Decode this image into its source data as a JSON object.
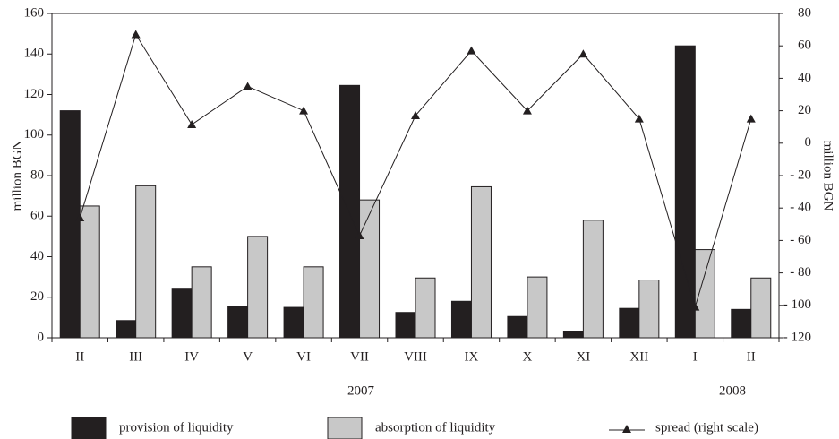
{
  "chart_data": {
    "type": "bar_line",
    "categories": [
      "II",
      "III",
      "IV",
      "V",
      "VI",
      "VII",
      "VIII",
      "IX",
      "X",
      "XI",
      "XII",
      "I",
      "II"
    ],
    "series": [
      {
        "name": "provision of liquidity",
        "color": "#231f20",
        "type": "bar",
        "values": [
          112,
          8.5,
          24,
          15.5,
          15,
          124.5,
          12.5,
          18,
          10.5,
          3,
          14.5,
          144,
          14
        ]
      },
      {
        "name": "absorption of liquidity",
        "color": "#c8c8c8",
        "type": "bar",
        "values": [
          65,
          75,
          35,
          50,
          35,
          68,
          29.5,
          74.5,
          30,
          58,
          28.5,
          43.5,
          29.5
        ]
      },
      {
        "name": "spread (right scale)",
        "color": "#231f20",
        "type": "line",
        "axis": "y2",
        "values": [
          -46,
          67,
          11.5,
          35,
          20,
          -57,
          17,
          57,
          20,
          55,
          15,
          -101,
          15
        ]
      }
    ],
    "ylabel": "million BGN",
    "y2label": "million BGN",
    "ylim": [
      0,
      160
    ],
    "yticks": [
      0,
      20,
      40,
      60,
      80,
      100,
      120,
      140,
      160
    ],
    "y2lim": [
      -120,
      80
    ],
    "y2ticks": [
      {
        "value": -120,
        "label": "- 120"
      },
      {
        "value": -100,
        "label": "- 100"
      },
      {
        "value": -80,
        "label": "- 80"
      },
      {
        "value": -60,
        "label": "- 60"
      },
      {
        "value": -40,
        "label": "- 40"
      },
      {
        "value": -20,
        "label": "- 20"
      },
      0,
      20,
      40,
      60,
      80
    ],
    "annotations": [
      "2007",
      "2008"
    ],
    "legend": "bottom"
  }
}
